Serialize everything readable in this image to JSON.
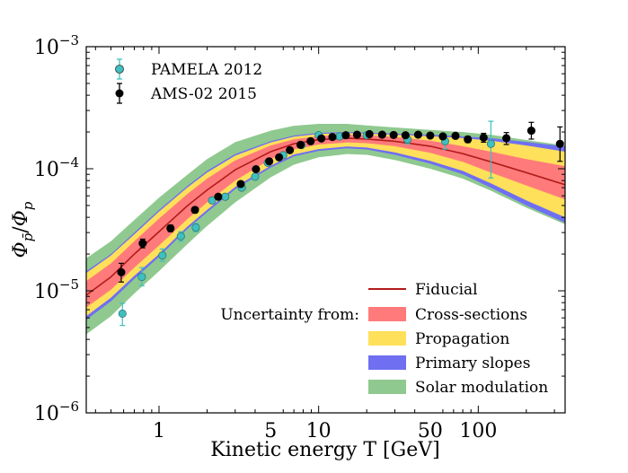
{
  "chart_data": {
    "type": "line",
    "xscale": "log",
    "yscale": "log",
    "xlim": [
      0.35,
      350
    ],
    "ylim": [
      1e-06,
      0.001
    ],
    "xlabel": "Kinetic energy T [GeV]",
    "ylabel_parts": {
      "phi": "Φ",
      "pbar": "p̄",
      "slash": "/",
      "p": "p"
    },
    "xticks": [
      {
        "value": 1,
        "label": "1"
      },
      {
        "value": 5,
        "label": "5"
      },
      {
        "value": 10,
        "label": "10"
      },
      {
        "value": 50,
        "label": "50"
      },
      {
        "value": 100,
        "label": "100"
      }
    ],
    "yticks": [
      {
        "value": 1e-06,
        "base": "10",
        "exp": "−6"
      },
      {
        "value": 1e-05,
        "base": "10",
        "exp": "−5"
      },
      {
        "value": 0.0001,
        "base": "10",
        "exp": "−4"
      },
      {
        "value": 0.001,
        "base": "10",
        "exp": "−3"
      }
    ],
    "bands": [
      {
        "name": "Solar modulation",
        "color": "#8fc98f",
        "x": [
          0.35,
          0.5,
          0.7,
          1.0,
          1.5,
          2.0,
          3.0,
          5.0,
          7.0,
          10,
          15,
          20,
          30,
          50,
          80,
          120,
          200,
          350
        ],
        "lower": [
          4.4e-06,
          6.2e-06,
          9.5e-06,
          1.45e-05,
          2.4e-05,
          3.4e-05,
          5.3e-05,
          8.5e-05,
          0.000108,
          0.000124,
          0.000132,
          0.00013,
          0.000118,
          0.0001,
          8.3e-05,
          6.6e-05,
          4.8e-05,
          3.5e-05
        ],
        "upper": [
          1.85e-05,
          2.55e-05,
          3.8e-05,
          5.8e-05,
          8.9e-05,
          0.00012,
          0.000165,
          0.000205,
          0.000225,
          0.000233,
          0.000233,
          0.000226,
          0.000218,
          0.000208,
          0.0002,
          0.00019,
          0.000172,
          0.000155
        ]
      },
      {
        "name": "Primary slopes",
        "color": "#6f6ff2",
        "x": [
          0.35,
          0.5,
          0.7,
          1.0,
          1.5,
          2.0,
          3.0,
          5.0,
          7.0,
          10,
          15,
          20,
          30,
          50,
          80,
          120,
          200,
          350
        ],
        "lower": [
          5.8e-06,
          8.2e-06,
          1.25e-05,
          1.9e-05,
          3.2e-05,
          4.4e-05,
          6.8e-05,
          0.000102,
          0.000126,
          0.00014,
          0.000147,
          0.000144,
          0.00013,
          0.00011,
          9e-05,
          7e-05,
          5e-05,
          3.6e-05
        ],
        "upper": [
          1.45e-05,
          2e-05,
          3e-05,
          4.6e-05,
          7.2e-05,
          9.6e-05,
          0.000132,
          0.000168,
          0.000187,
          0.000197,
          0.0002,
          0.000198,
          0.000194,
          0.00019,
          0.000184,
          0.000178,
          0.000166,
          0.000152
        ]
      },
      {
        "name": "Propagation",
        "color": "#ffe05a",
        "x": [
          0.35,
          0.5,
          0.7,
          1.0,
          1.5,
          2.0,
          3.0,
          5.0,
          7.0,
          10,
          15,
          20,
          30,
          50,
          80,
          120,
          200,
          350
        ],
        "lower": [
          6.2e-06,
          8.8e-06,
          1.33e-05,
          2e-05,
          3.35e-05,
          4.6e-05,
          7.1e-05,
          0.000106,
          0.000131,
          0.000145,
          0.000152,
          0.000149,
          0.000136,
          0.000116,
          9.6e-05,
          7.6e-05,
          5.5e-05,
          4e-05
        ],
        "upper": [
          1.4e-05,
          1.95e-05,
          2.9e-05,
          4.45e-05,
          7e-05,
          9.3e-05,
          0.000128,
          0.000164,
          0.000183,
          0.000193,
          0.000196,
          0.000194,
          0.00019,
          0.000185,
          0.000178,
          0.00017,
          0.000155,
          0.000138
        ]
      },
      {
        "name": "Cross-sections",
        "color": "#ff7b7b",
        "x": [
          0.35,
          0.5,
          0.7,
          1.0,
          1.5,
          2.0,
          3.0,
          5.0,
          7.0,
          10,
          15,
          20,
          30,
          50,
          80,
          120,
          200,
          350
        ],
        "lower": [
          7.3e-06,
          1.02e-05,
          1.55e-05,
          2.35e-05,
          3.85e-05,
          5.3e-05,
          8e-05,
          0.00012,
          0.000144,
          0.000158,
          0.000164,
          0.000162,
          0.000153,
          0.000135,
          0.000114,
          9.3e-05,
          7.3e-05,
          5.6e-05
        ],
        "upper": [
          1.2e-05,
          1.68e-05,
          2.55e-05,
          3.9e-05,
          6.2e-05,
          8.3e-05,
          0.000117,
          0.000155,
          0.000174,
          0.000185,
          0.00019,
          0.000188,
          0.000182,
          0.00017,
          0.000153,
          0.000138,
          0.00012,
          0.000105
        ]
      }
    ],
    "fiducial": {
      "name": "Fiducial",
      "color": "#b31b1b",
      "x": [
        0.35,
        0.5,
        0.7,
        1.0,
        1.5,
        2.0,
        3.0,
        5.0,
        7.0,
        10,
        15,
        20,
        30,
        50,
        80,
        120,
        200,
        350
      ],
      "y": [
        9.2e-06,
        1.3e-05,
        2e-05,
        3.05e-05,
        4.95e-05,
        6.7e-05,
        9.8e-05,
        0.000138,
        0.00016,
        0.000173,
        0.000178,
        0.000175,
        0.000168,
        0.000153,
        0.000133,
        0.000114,
        9.3e-05,
        7.4e-05
      ]
    },
    "series": [
      {
        "name": "PAMELA 2012",
        "color": "#3fbfbf",
        "points": [
          {
            "x": 0.59,
            "y": 6.5e-06,
            "lo": 5.2e-06,
            "hi": 7.9e-06
          },
          {
            "x": 0.78,
            "y": 1.3e-05,
            "lo": 1.1e-05,
            "hi": 1.55e-05
          },
          {
            "x": 1.05,
            "y": 1.95e-05,
            "lo": 1.75e-05,
            "hi": 2.2e-05
          },
          {
            "x": 1.37,
            "y": 2.8e-05,
            "lo": 2.55e-05,
            "hi": 3.05e-05
          },
          {
            "x": 1.7,
            "y": 3.3e-05,
            "lo": 3.05e-05,
            "hi": 3.55e-05
          },
          {
            "x": 2.15,
            "y": 5.5e-05,
            "lo": 5.2e-05,
            "hi": 5.8e-05
          },
          {
            "x": 2.6,
            "y": 5.9e-05,
            "lo": 5.6e-05,
            "hi": 6.2e-05
          },
          {
            "x": 3.3,
            "y": 7e-05,
            "lo": 6.7e-05,
            "hi": 7.3e-05
          },
          {
            "x": 4.0,
            "y": 8.6e-05,
            "lo": 8.2e-05,
            "hi": 9e-05
          },
          {
            "x": 4.8,
            "y": 0.000112,
            "lo": 0.000107,
            "hi": 0.000117
          },
          {
            "x": 6.0,
            "y": 0.000129,
            "lo": 0.000124,
            "hi": 0.000134
          },
          {
            "x": 7.8,
            "y": 0.000156,
            "lo": 0.00015,
            "hi": 0.000162
          },
          {
            "x": 10.0,
            "y": 0.000188,
            "lo": 0.00018,
            "hi": 0.000196
          },
          {
            "x": 13.5,
            "y": 0.000184,
            "lo": 0.000176,
            "hi": 0.000192
          },
          {
            "x": 20.0,
            "y": 0.000188,
            "lo": 0.000178,
            "hi": 0.000198
          },
          {
            "x": 36.0,
            "y": 0.000174,
            "lo": 0.00016,
            "hi": 0.000188
          },
          {
            "x": 62.0,
            "y": 0.000168,
            "lo": 0.000145,
            "hi": 0.000191
          },
          {
            "x": 120.0,
            "y": 0.00016,
            "lo": 8.4e-05,
            "hi": 0.000245
          }
        ]
      },
      {
        "name": "AMS-02 2015",
        "color": "#000000",
        "points": [
          {
            "x": 0.58,
            "y": 1.42e-05,
            "lo": 1.18e-05,
            "hi": 1.68e-05
          },
          {
            "x": 0.79,
            "y": 2.45e-05,
            "lo": 2.25e-05,
            "hi": 2.65e-05
          },
          {
            "x": 1.18,
            "y": 3.25e-05,
            "lo": 3.05e-05,
            "hi": 3.45e-05
          },
          {
            "x": 1.68,
            "y": 4.6e-05,
            "lo": 4.35e-05,
            "hi": 4.85e-05
          },
          {
            "x": 2.35,
            "y": 5.9e-05,
            "lo": 5.6e-05,
            "hi": 6.2e-05
          },
          {
            "x": 3.25,
            "y": 7.5e-05,
            "lo": 7.2e-05,
            "hi": 7.8e-05
          },
          {
            "x": 4.05,
            "y": 9.9e-05,
            "lo": 9.5e-05,
            "hi": 0.000103
          },
          {
            "x": 4.9,
            "y": 0.000115,
            "lo": 0.000111,
            "hi": 0.000119
          },
          {
            "x": 5.65,
            "y": 0.000124,
            "lo": 0.00012,
            "hi": 0.000128
          },
          {
            "x": 6.6,
            "y": 0.000142,
            "lo": 0.000138,
            "hi": 0.000146
          },
          {
            "x": 7.7,
            "y": 0.000157,
            "lo": 0.000153,
            "hi": 0.000161
          },
          {
            "x": 8.9,
            "y": 0.000168,
            "lo": 0.000164,
            "hi": 0.000172
          },
          {
            "x": 10.4,
            "y": 0.000177,
            "lo": 0.000173,
            "hi": 0.000181
          },
          {
            "x": 12.2,
            "y": 0.000182,
            "lo": 0.000178,
            "hi": 0.000186
          },
          {
            "x": 14.8,
            "y": 0.000188,
            "lo": 0.000184,
            "hi": 0.000192
          },
          {
            "x": 17.4,
            "y": 0.00019,
            "lo": 0.000186,
            "hi": 0.000194
          },
          {
            "x": 20.8,
            "y": 0.000192,
            "lo": 0.000188,
            "hi": 0.000196
          },
          {
            "x": 25.0,
            "y": 0.00019,
            "lo": 0.000186,
            "hi": 0.000194
          },
          {
            "x": 29.5,
            "y": 0.000189,
            "lo": 0.000185,
            "hi": 0.000193
          },
          {
            "x": 35.0,
            "y": 0.000188,
            "lo": 0.000184,
            "hi": 0.000192
          },
          {
            "x": 42.0,
            "y": 0.00019,
            "lo": 0.000185,
            "hi": 0.000195
          },
          {
            "x": 50.0,
            "y": 0.000187,
            "lo": 0.000182,
            "hi": 0.000192
          },
          {
            "x": 60.0,
            "y": 0.000184,
            "lo": 0.000178,
            "hi": 0.00019
          },
          {
            "x": 72.0,
            "y": 0.000186,
            "lo": 0.000179,
            "hi": 0.000193
          },
          {
            "x": 86.0,
            "y": 0.000174,
            "lo": 0.000164,
            "hi": 0.000184
          },
          {
            "x": 108.0,
            "y": 0.00018,
            "lo": 0.000165,
            "hi": 0.000195
          },
          {
            "x": 150.0,
            "y": 0.000178,
            "lo": 0.000158,
            "hi": 0.000198
          },
          {
            "x": 215.0,
            "y": 0.000205,
            "lo": 0.000175,
            "hi": 0.00024
          },
          {
            "x": 325.0,
            "y": 0.00016,
            "lo": 0.000115,
            "hi": 0.00022
          }
        ]
      }
    ],
    "legend_markers": [
      {
        "name": "PAMELA 2012",
        "color": "#3fbfbf"
      },
      {
        "name": "AMS-02 2015",
        "color": "#000000"
      }
    ],
    "legend_theory": {
      "heading": "Uncertainty from:",
      "items": [
        {
          "name": "Fiducial",
          "kind": "line",
          "color": "#b31b1b"
        },
        {
          "name": "Cross-sections",
          "kind": "patch",
          "color": "#ff7b7b"
        },
        {
          "name": "Propagation",
          "kind": "patch",
          "color": "#ffe05a"
        },
        {
          "name": "Primary slopes",
          "kind": "patch",
          "color": "#6f6ff2"
        },
        {
          "name": "Solar modulation",
          "kind": "patch",
          "color": "#8fc98f"
        }
      ]
    }
  }
}
